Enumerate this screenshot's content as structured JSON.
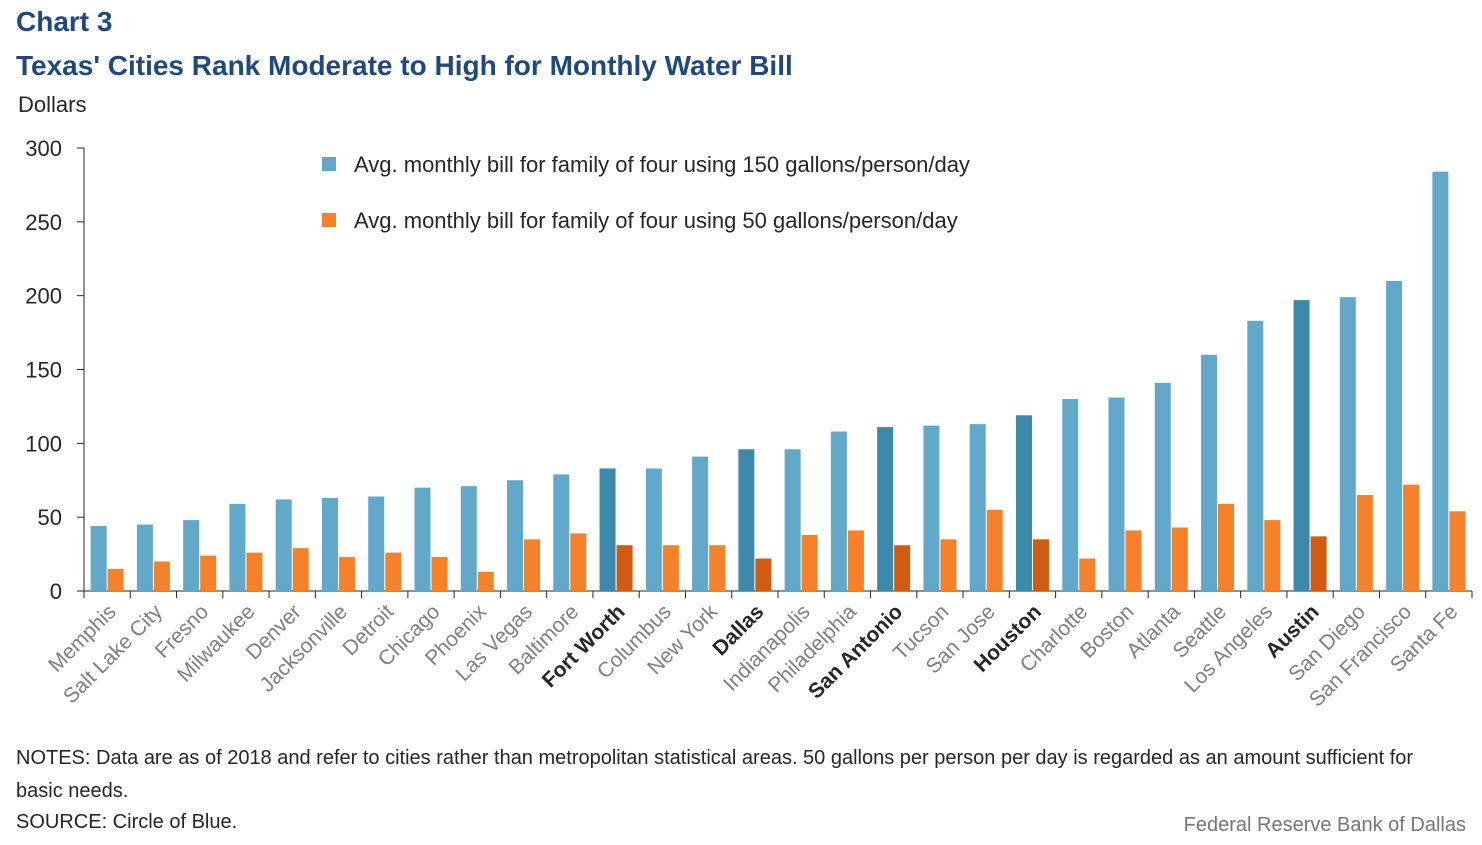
{
  "header": {
    "chart_label": "Chart 3",
    "title": "Texas' Cities Rank Moderate to High for Monthly Water Bill",
    "units": "Dollars"
  },
  "footer": {
    "notes": "NOTES: Data are as of 2018 and refer to cities rather than metropolitan statistical areas. 50 gallons per person per day is regarded as an amount sufficient for basic needs.",
    "source": "SOURCE: Circle of Blue.",
    "credit": "Federal Reserve Bank of Dallas"
  },
  "colors": {
    "series_150": "#62a9c9",
    "series_50": "#f5822a",
    "series_150_highlight": "#3d89aa",
    "series_50_highlight": "#cf5c12",
    "title": "#1f497d",
    "axis": "#262626",
    "category_label": "#7f7f7f",
    "category_label_highlight": "#262626"
  },
  "chart_data": {
    "type": "bar",
    "title": "Texas' Cities Rank Moderate to High for Monthly Water Bill",
    "ylabel": "Dollars",
    "xlabel": "",
    "ylim": [
      0,
      300
    ],
    "yticks": [
      0,
      50,
      100,
      150,
      200,
      250,
      300
    ],
    "grid": false,
    "legend_position": "top-center",
    "categories": [
      "Memphis",
      "Salt Lake City",
      "Fresno",
      "Milwaukee",
      "Denver",
      "Jacksonville",
      "Detroit",
      "Chicago",
      "Phoenix",
      "Las Vegas",
      "Baltimore",
      "Fort Worth",
      "Columbus",
      "New York",
      "Dallas",
      "Indianapolis",
      "Philadelphia",
      "San Antonio",
      "Tucson",
      "San Jose",
      "Houston",
      "Charlotte",
      "Boston",
      "Atlanta",
      "Seattle",
      "Los Angeles",
      "Austin",
      "San Diego",
      "San Francisco",
      "Santa Fe"
    ],
    "highlighted_categories": [
      "Fort Worth",
      "Dallas",
      "San Antonio",
      "Houston",
      "Austin"
    ],
    "series": [
      {
        "name": "Avg. monthly bill for family of four using 150 gallons/person/day",
        "values": [
          44,
          45,
          48,
          59,
          62,
          63,
          64,
          70,
          71,
          75,
          79,
          83,
          83,
          91,
          96,
          96,
          108,
          111,
          112,
          113,
          119,
          130,
          131,
          141,
          160,
          183,
          197,
          199,
          210,
          284
        ]
      },
      {
        "name": "Avg. monthly bill for family of four using 50 gallons/person/day",
        "values": [
          15,
          20,
          24,
          26,
          29,
          23,
          26,
          23,
          13,
          35,
          39,
          31,
          31,
          31,
          22,
          38,
          41,
          31,
          35,
          55,
          35,
          22,
          41,
          43,
          59,
          48,
          37,
          65,
          72,
          54
        ]
      }
    ]
  }
}
